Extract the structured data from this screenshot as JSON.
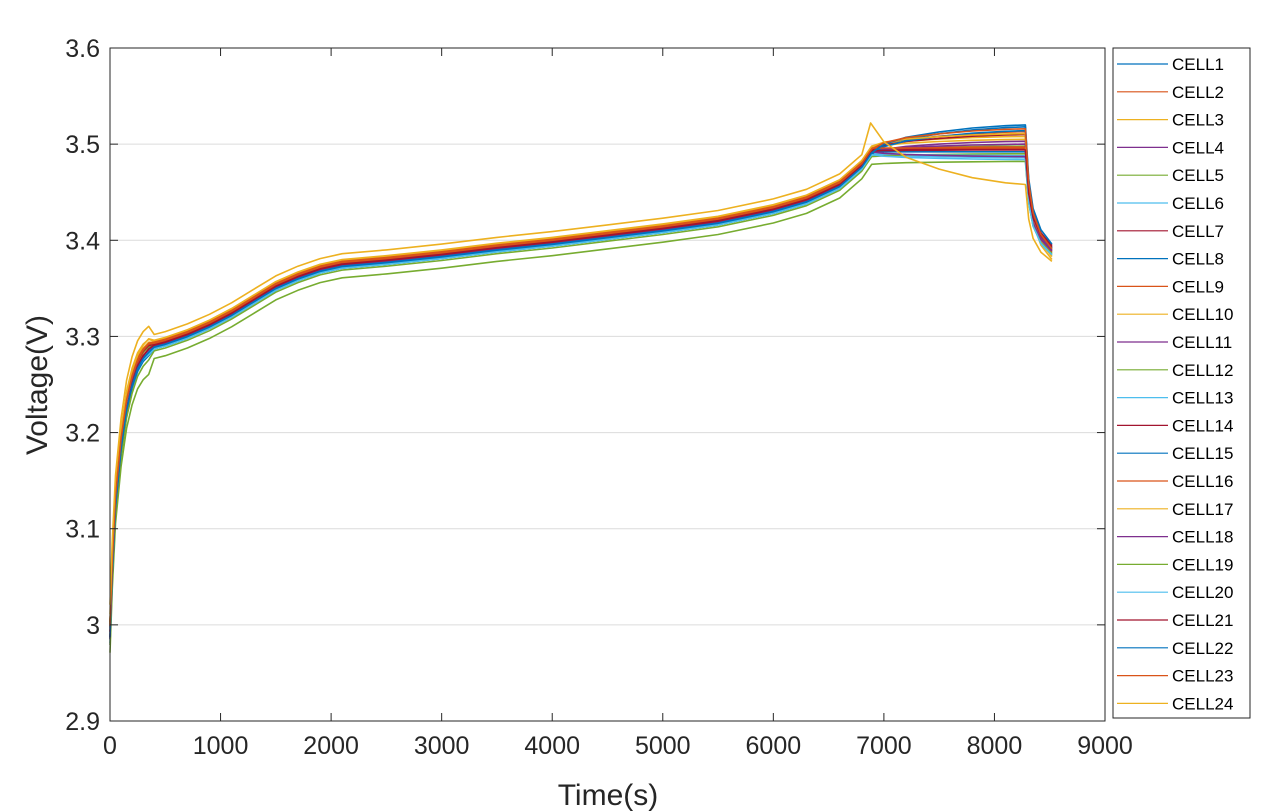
{
  "chart_data": {
    "type": "line",
    "xlabel": "Time(s)",
    "ylabel": "Voltage(V)",
    "xlim": [
      0,
      9000
    ],
    "ylim": [
      2.9,
      3.6
    ],
    "xticks": [
      "0",
      "1000",
      "2000",
      "3000",
      "4000",
      "5000",
      "6000",
      "7000",
      "8000",
      "9000"
    ],
    "yticks": [
      "2.9",
      "3",
      "3.1",
      "3.2",
      "3.3",
      "3.4",
      "3.5",
      "3.6"
    ],
    "grid": "horizontal",
    "legend_position": "outside-right",
    "colors": [
      "#0072BD",
      "#D95319",
      "#EDB120",
      "#7E2F8E",
      "#77AC30",
      "#4DBEEE",
      "#A2142F"
    ],
    "base_curve": {
      "x": [
        0,
        20,
        50,
        100,
        150,
        200,
        250,
        300,
        350,
        400,
        500,
        700,
        900,
        1100,
        1300,
        1500,
        1700,
        1900,
        2100,
        2500,
        3000,
        3500,
        4000,
        4500,
        5000,
        5500,
        6000,
        6300,
        6600,
        6800,
        6890
      ],
      "y": [
        2.995,
        3.06,
        3.13,
        3.19,
        3.23,
        3.255,
        3.272,
        3.282,
        3.288,
        3.291,
        3.294,
        3.302,
        3.312,
        3.324,
        3.338,
        3.352,
        3.362,
        3.37,
        3.375,
        3.379,
        3.385,
        3.392,
        3.398,
        3.405,
        3.412,
        3.42,
        3.432,
        3.442,
        3.458,
        3.478,
        3.493
      ]
    },
    "series": [
      {
        "name": "CELL1",
        "offset": -0.001,
        "rest_end": 3.492,
        "end": 3.393
      },
      {
        "name": "CELL2",
        "offset": 0.001,
        "rest_end": 3.513,
        "end": 3.392
      },
      {
        "name": "CELL3",
        "offset": 0.003,
        "rest_end": 3.505,
        "end": 3.38
      },
      {
        "name": "CELL4",
        "offset": -0.002,
        "rest_end": 3.503,
        "end": 3.39
      },
      {
        "name": "CELL5",
        "offset": 0.0,
        "rest_end": 3.498,
        "end": 3.388
      },
      {
        "name": "CELL6",
        "offset": -0.003,
        "rest_end": 3.486,
        "end": 3.386
      },
      {
        "name": "CELL7",
        "offset": 0.002,
        "rest_end": 3.495,
        "end": 3.395
      },
      {
        "name": "CELL8",
        "offset": -0.004,
        "rest_end": 3.518,
        "end": 3.392
      },
      {
        "name": "CELL9",
        "offset": 0.002,
        "rest_end": 3.497,
        "end": 3.389
      },
      {
        "name": "CELL10",
        "offset": 0.004,
        "rest_end": 3.508,
        "end": 3.385
      },
      {
        "name": "CELL11",
        "offset": -0.001,
        "rest_end": 3.5,
        "end": 3.39
      },
      {
        "name": "CELL12",
        "offset": -0.006,
        "rest_end": 3.49,
        "end": 3.387
      },
      {
        "name": "CELL13",
        "offset": -0.002,
        "rest_end": 3.488,
        "end": 3.384
      },
      {
        "name": "CELL14",
        "offset": 0.001,
        "rest_end": 3.51,
        "end": 3.394
      },
      {
        "name": "CELL15",
        "offset": -0.003,
        "rest_end": 3.514,
        "end": 3.391
      },
      {
        "name": "CELL16",
        "offset": 0.003,
        "rest_end": 3.496,
        "end": 3.388
      },
      {
        "name": "CELL17",
        "offset": 0.005,
        "rest_end": 3.511,
        "end": 3.383
      },
      {
        "name": "CELL18",
        "offset": -0.001,
        "rest_end": 3.487,
        "end": 3.389
      },
      {
        "name": "CELL19",
        "offset": -0.014,
        "rest_end": 3.482,
        "end": 3.386
      },
      {
        "name": "CELL20",
        "offset": -0.004,
        "rest_end": 3.484,
        "end": 3.385
      },
      {
        "name": "CELL21",
        "offset": 0.0,
        "rest_end": 3.494,
        "end": 3.393
      },
      {
        "name": "CELL22",
        "offset": -0.002,
        "rest_end": 3.52,
        "end": 3.396
      },
      {
        "name": "CELL23",
        "offset": 0.002,
        "rest_end": 3.516,
        "end": 3.391
      },
      {
        "name": "CELL24",
        "offset": 0.011,
        "rest_end": 3.458,
        "end": 3.378,
        "peak_x": 6880,
        "peak_y": 3.522
      }
    ]
  }
}
